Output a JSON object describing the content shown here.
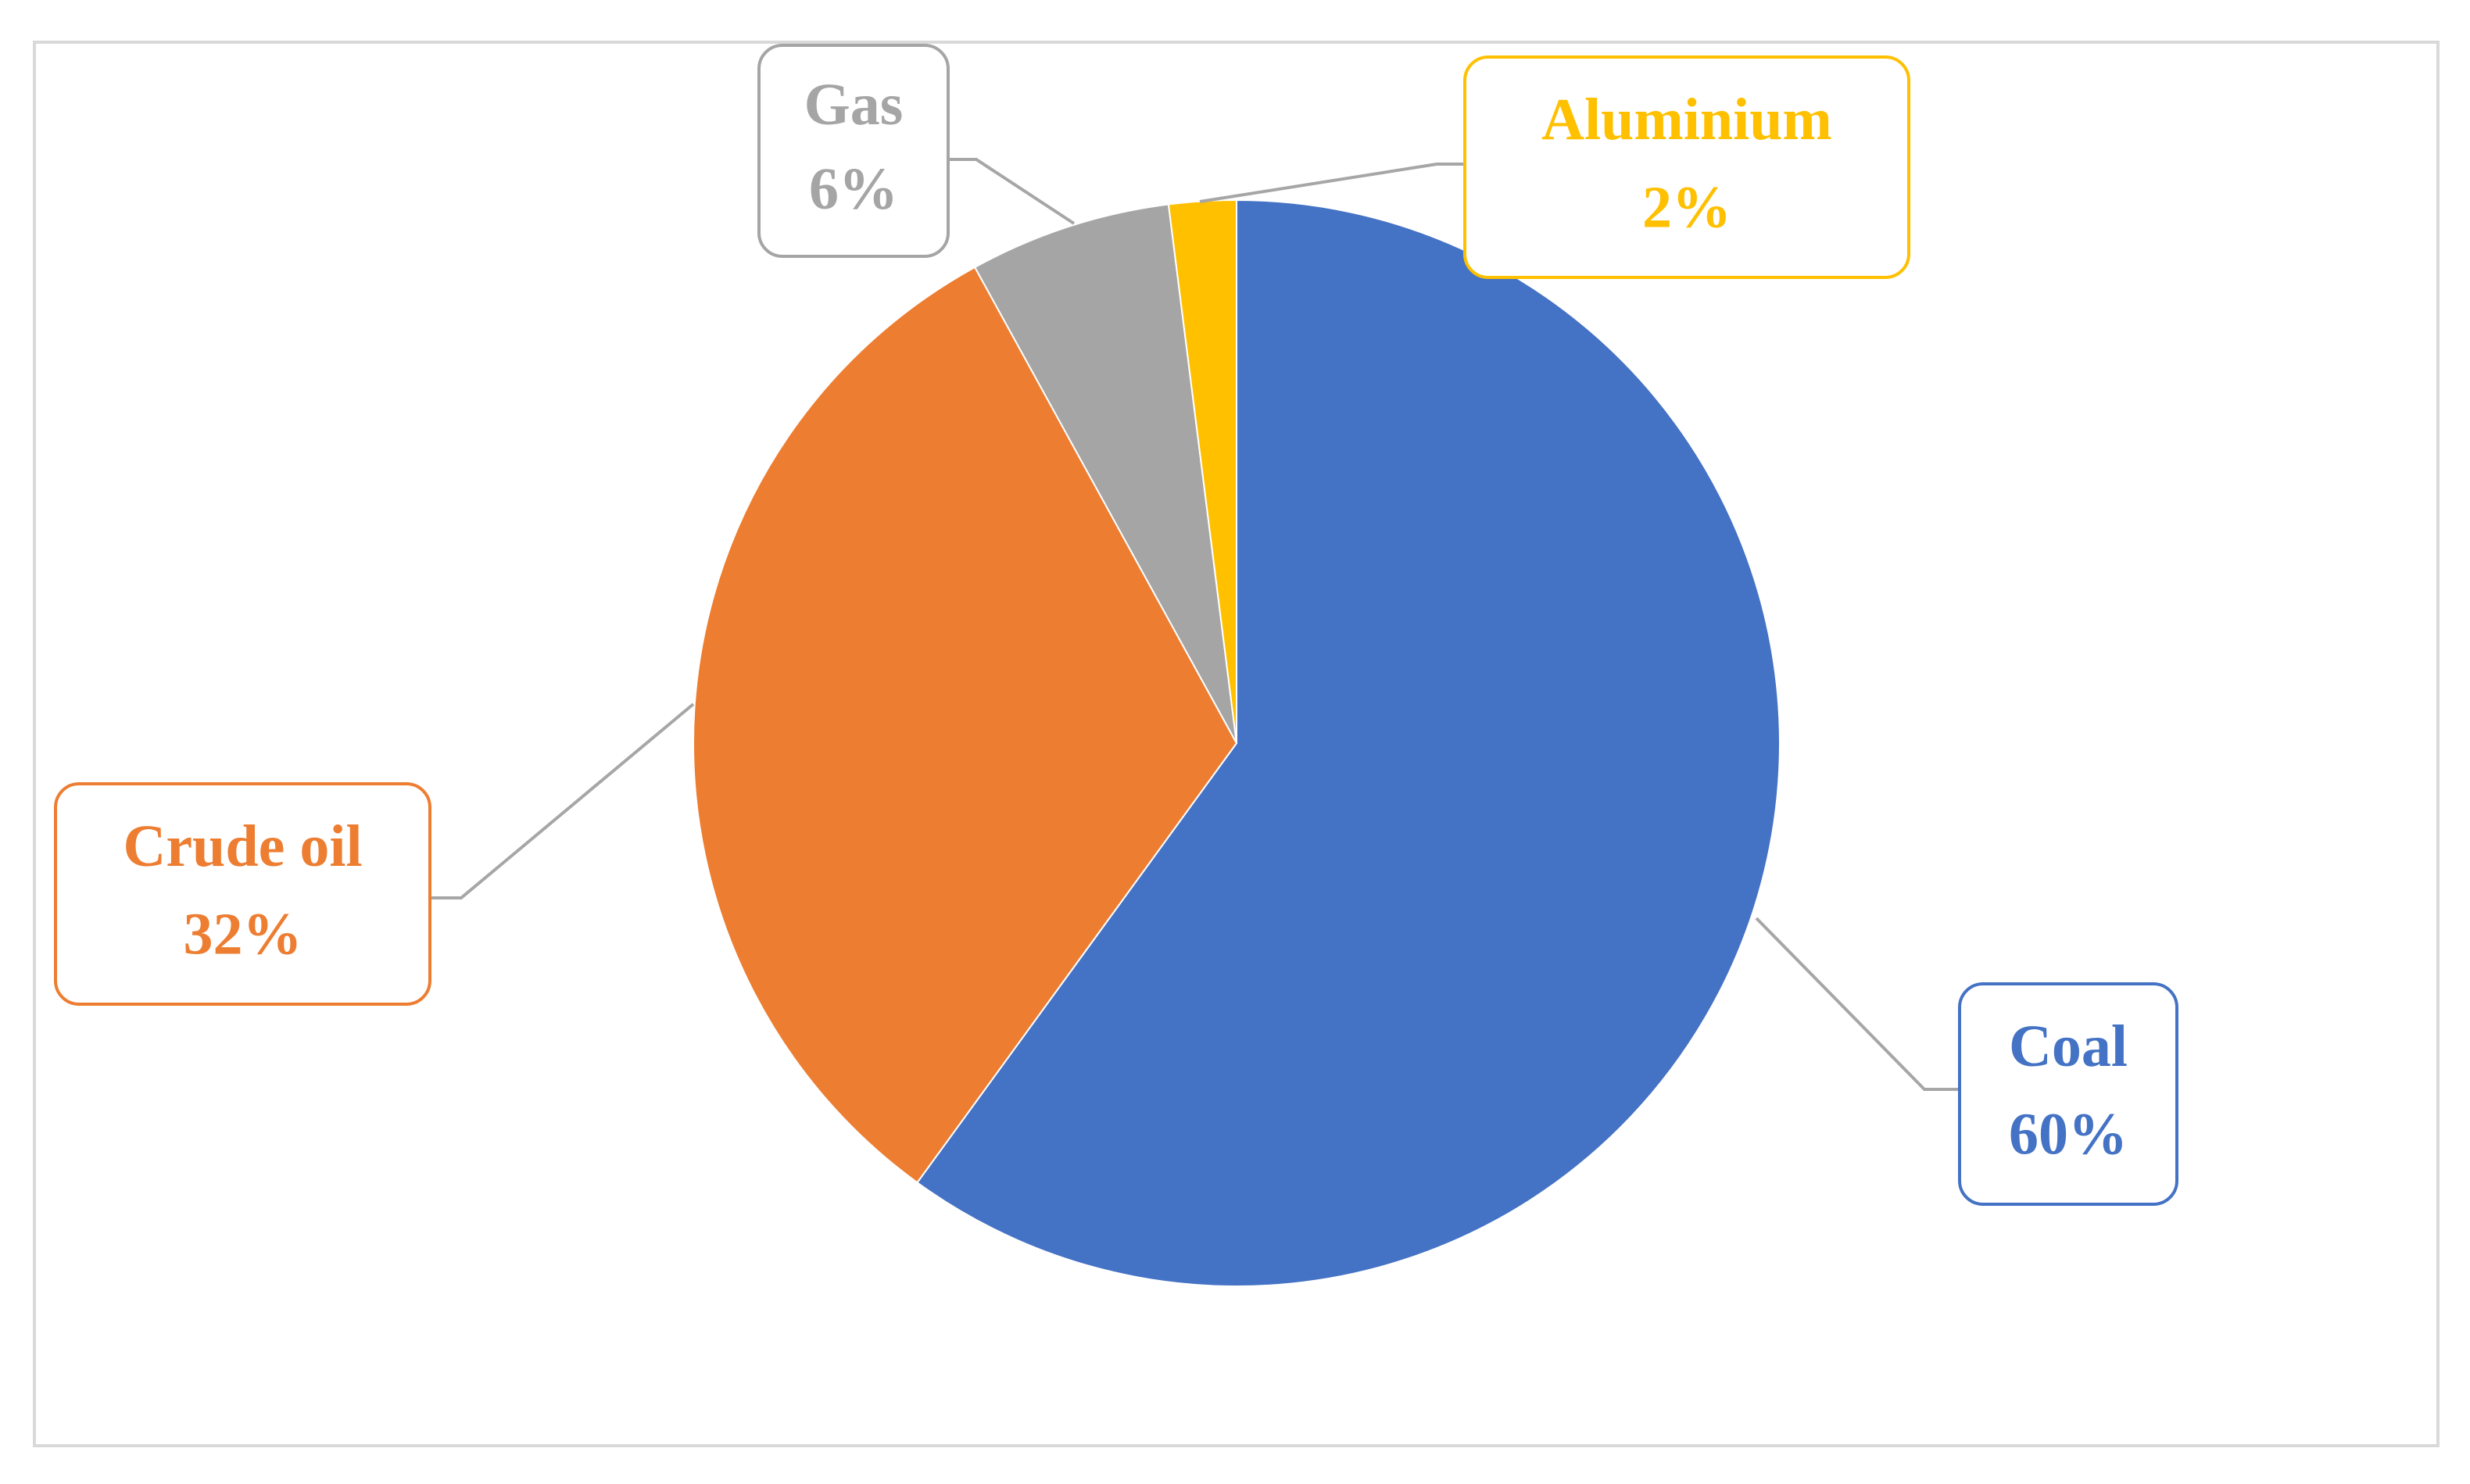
{
  "chart_data": {
    "type": "pie",
    "categories": [
      "Coal",
      "Crude oil",
      "Gas",
      "Aluminium"
    ],
    "values": [
      60,
      32,
      6,
      2
    ],
    "value_labels": [
      "60%",
      "32%",
      "6%",
      "2%"
    ],
    "colors": [
      "#4472c4",
      "#ed7d31",
      "#a5a5a5",
      "#ffc000"
    ]
  }
}
